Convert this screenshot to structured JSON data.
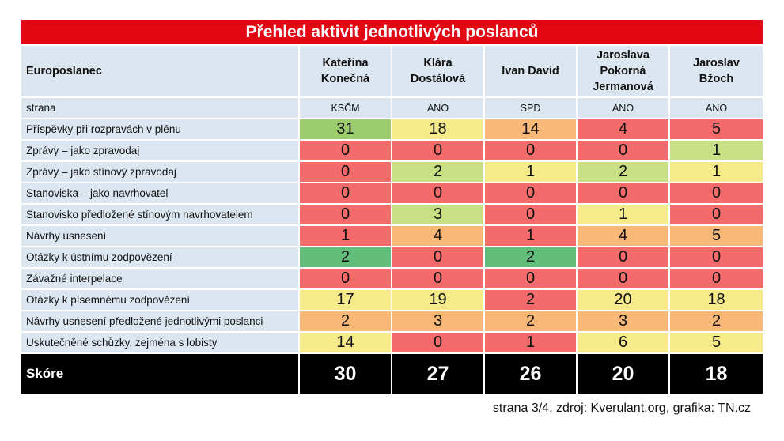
{
  "title": "Přehled aktivit jednotlivých poslanců",
  "footer": "strana 3/4, zdroj: Kverulant.org, grafika: TN.cz",
  "chart_data": {
    "type": "table",
    "row_header_label": "Europoslanec",
    "party_label": "strana",
    "members": [
      {
        "name_lines": [
          "Kateřina",
          "Konečná",
          ""
        ],
        "party": "KSČM"
      },
      {
        "name_lines": [
          "Klára",
          "Dostálová",
          ""
        ],
        "party": "ANO"
      },
      {
        "name_lines": [
          "Ivan David",
          "",
          ""
        ],
        "party": "SPD"
      },
      {
        "name_lines": [
          "Jaroslava",
          "Pokorná",
          "Jermanová"
        ],
        "party": "ANO"
      },
      {
        "name_lines": [
          "Jaroslav",
          "Bžoch",
          ""
        ],
        "party": "ANO"
      }
    ],
    "rows": [
      {
        "label": "Příspěvky při rozpravách v plénu",
        "values": [
          31,
          18,
          14,
          4,
          5
        ]
      },
      {
        "label": "Zprávy – jako zpravodaj",
        "values": [
          0,
          0,
          0,
          0,
          1
        ]
      },
      {
        "label": "Zprávy – jako stínový zpravodaj",
        "values": [
          0,
          2,
          1,
          2,
          1
        ]
      },
      {
        "label": "Stanoviska – jako navrhovatel",
        "values": [
          0,
          0,
          0,
          0,
          0
        ]
      },
      {
        "label": "Stanovisko předložené stínovým navrhovatelem",
        "values": [
          0,
          3,
          0,
          1,
          0
        ]
      },
      {
        "label": "Návrhy usnesení",
        "values": [
          1,
          4,
          1,
          4,
          5
        ]
      },
      {
        "label": "Otázky k ústnímu zodpovězení",
        "values": [
          2,
          0,
          2,
          0,
          0
        ]
      },
      {
        "label": "Závažné interpelace",
        "values": [
          0,
          0,
          0,
          0,
          0
        ]
      },
      {
        "label": "Otázky k písemnému zodpovězení",
        "values": [
          17,
          19,
          2,
          20,
          18
        ]
      },
      {
        "label": "Návrhy usnesení předložené jednotlivými poslanci",
        "values": [
          2,
          3,
          2,
          3,
          2
        ]
      },
      {
        "label": "Uskutečněné schůzky, zejména s lobisty",
        "values": [
          14,
          0,
          1,
          6,
          5
        ]
      }
    ],
    "score_label": "Skóre",
    "scores": [
      30,
      27,
      26,
      20,
      18
    ],
    "cell_colors": [
      [
        "#9ccc6e",
        "#f6ea8a",
        "#f8b878",
        "#f46b6b",
        "#f46b6b"
      ],
      [
        "#f46b6b",
        "#f46b6b",
        "#f46b6b",
        "#f46b6b",
        "#c9df86"
      ],
      [
        "#f46b6b",
        "#c9df86",
        "#f6ea8a",
        "#c9df86",
        "#f6ea8a"
      ],
      [
        "#f46b6b",
        "#f46b6b",
        "#f46b6b",
        "#f46b6b",
        "#f46b6b"
      ],
      [
        "#f46b6b",
        "#c9df86",
        "#f46b6b",
        "#f6ea8a",
        "#f46b6b"
      ],
      [
        "#f46b6b",
        "#f8b878",
        "#f46b6b",
        "#f8b878",
        "#f8b878"
      ],
      [
        "#63be7b",
        "#f46b6b",
        "#63be7b",
        "#f46b6b",
        "#f46b6b"
      ],
      [
        "#f46b6b",
        "#f46b6b",
        "#f46b6b",
        "#f46b6b",
        "#f46b6b"
      ],
      [
        "#f6ea8a",
        "#f6ea8a",
        "#f46b6b",
        "#f6ea8a",
        "#f6ea8a"
      ],
      [
        "#f8b878",
        "#f8b878",
        "#f8b878",
        "#f8b878",
        "#f8b878"
      ],
      [
        "#f6ea8a",
        "#f46b6b",
        "#f46b6b",
        "#f6ea8a",
        "#f6ea8a"
      ]
    ]
  }
}
